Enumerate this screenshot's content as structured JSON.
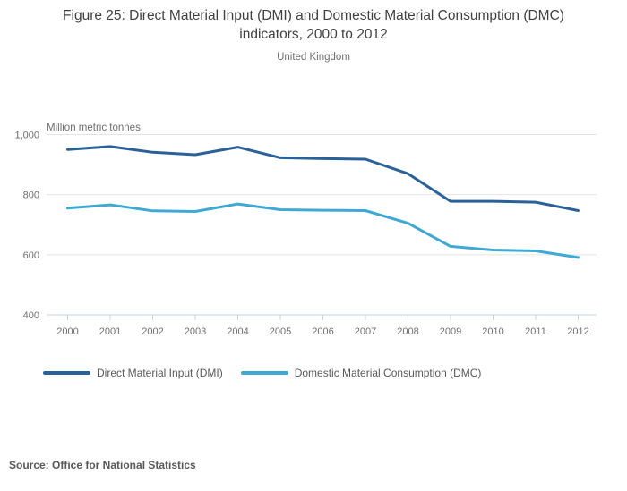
{
  "chart_data": {
    "type": "line",
    "title": "Figure 25: Direct Material Input (DMI) and Domestic Material Consumption (DMC) indicators, 2000 to 2012",
    "subtitle": "United Kingdom",
    "unit_label": "Million metric tonnes",
    "x": [
      2000,
      2001,
      2002,
      2003,
      2004,
      2005,
      2006,
      2007,
      2008,
      2009,
      2010,
      2011,
      2012
    ],
    "series": [
      {
        "name": "Direct Material Input (DMI)",
        "color": "#2a6298",
        "values": [
          950,
          960,
          941,
          933,
          958,
          923,
          920,
          918,
          870,
          778,
          778,
          775,
          747
        ]
      },
      {
        "name": "Domestic Material Consumption (DMC)",
        "color": "#3fa9d4",
        "values": [
          755,
          766,
          746,
          744,
          769,
          750,
          748,
          747,
          705,
          628,
          616,
          613,
          591
        ]
      }
    ],
    "ylim": [
      400,
      1000
    ],
    "yticks": [
      {
        "value": 1000,
        "label": "1,000"
      },
      {
        "value": 800,
        "label": "800"
      },
      {
        "value": 600,
        "label": "600"
      },
      {
        "value": 400,
        "label": "400"
      }
    ],
    "grid": true,
    "legend_position": "bottom",
    "colors": {
      "grid": "#e4e4e4",
      "axis": "#c6d3e2",
      "tick_label": "#6e6e6e",
      "title_text": "#414042"
    }
  },
  "footer": {
    "source": "Source: Office for National Statistics"
  }
}
